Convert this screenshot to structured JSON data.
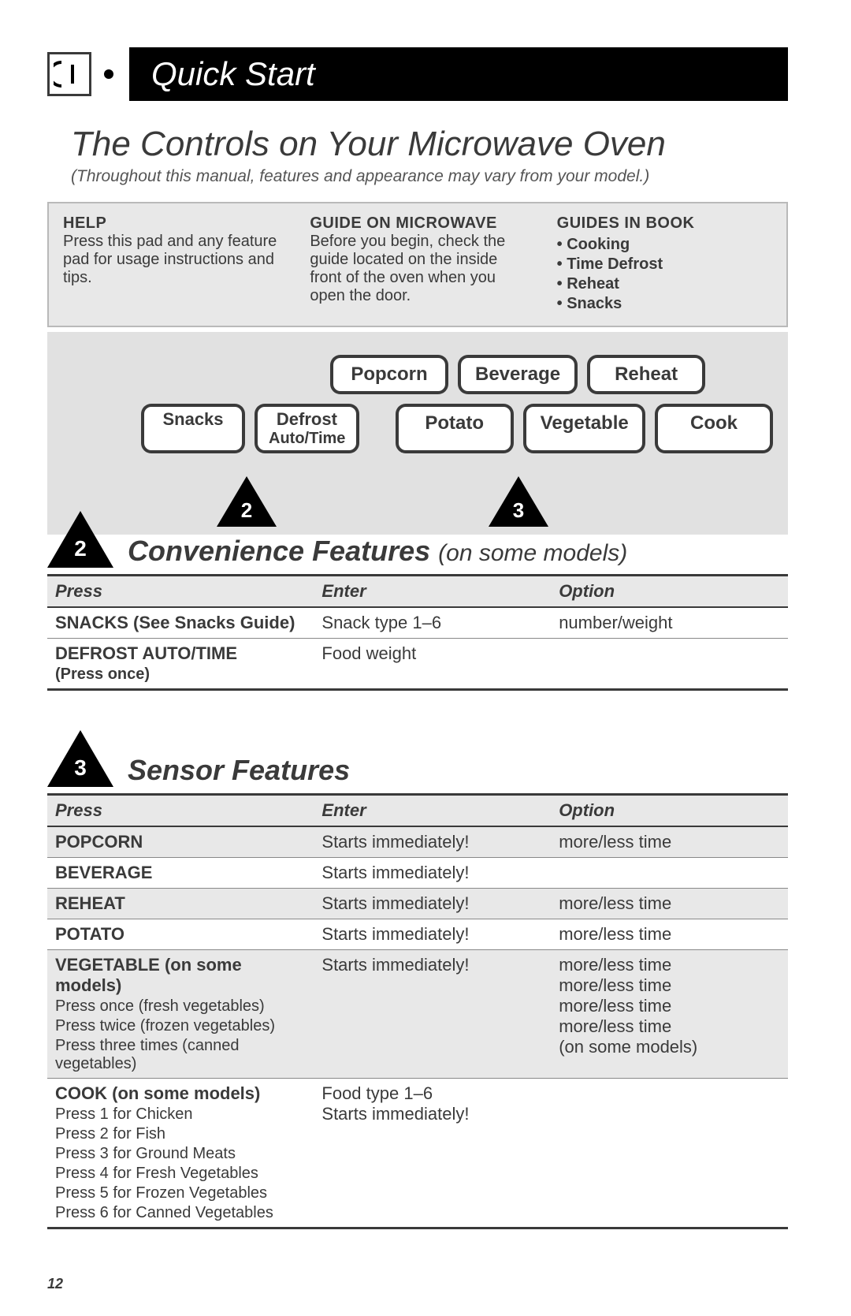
{
  "header": {
    "title": "Quick Start"
  },
  "main": {
    "title": "The Controls on Your Microwave Oven",
    "subtitle": "(Throughout this manual, features and appearance may vary from your model.)"
  },
  "guide": {
    "help": {
      "h": "HELP",
      "body": "Press this pad and any feature pad for usage instructions and tips."
    },
    "mw": {
      "h": "GUIDE ON MICROWAVE",
      "body": "Before you begin, check the guide located on the inside front of the oven when you open the door."
    },
    "book": {
      "h": "GUIDES IN BOOK",
      "items": [
        "Cooking",
        "Time Defrost",
        "Reheat",
        "Snacks"
      ]
    }
  },
  "buttons": {
    "row1": [
      "Popcorn",
      "Beverage",
      "Reheat"
    ],
    "row2_left": {
      "a": "Snacks",
      "b_top": "Defrost",
      "b_sub": "Auto/Time"
    },
    "row2_right": [
      "Potato",
      "Vegetable",
      "Cook"
    ],
    "markers": {
      "left": "2",
      "right": "3",
      "below": "2"
    }
  },
  "section2": {
    "title": "Convenience Features",
    "note": "(on some models)",
    "marker": "2",
    "columns": [
      "Press",
      "Enter",
      "Option"
    ],
    "rows": [
      {
        "press": "SNACKS (See Snacks Guide)",
        "enter": "Snack type 1–6",
        "option": "number/weight"
      },
      {
        "press": "DEFROST AUTO/TIME",
        "press_sub": "(Press once)",
        "enter": "Food weight",
        "option": ""
      }
    ]
  },
  "section3": {
    "title": "Sensor Features",
    "marker": "3",
    "columns": [
      "Press",
      "Enter",
      "Option"
    ],
    "rows": [
      {
        "press": "POPCORN",
        "enter": "Starts immediately!",
        "option": "more/less time",
        "alt": true
      },
      {
        "press": "BEVERAGE",
        "enter": "Starts immediately!",
        "option": ""
      },
      {
        "press": "REHEAT",
        "enter": "Starts immediately!",
        "option": "more/less time",
        "alt": true
      },
      {
        "press": "POTATO",
        "enter": "Starts immediately!",
        "option": "more/less time"
      },
      {
        "press": "VEGETABLE (on some models)",
        "press_extra": [
          "Press once (fresh vegetables)",
          "Press twice (frozen vegetables)",
          "Press three times (canned vegetables)"
        ],
        "enter": "Starts immediately!",
        "option_lines": [
          "more/less time",
          "more/less time",
          "more/less time",
          "more/less time",
          "(on some models)"
        ],
        "alt": true
      },
      {
        "press": "COOK (on some models)",
        "press_extra": [
          "Press 1 for Chicken",
          "Press 2 for Fish",
          "Press 3 for Ground Meats",
          "Press 4 for Fresh Vegetables",
          "Press 5 for Frozen Vegetables",
          "Press 6 for Canned Vegetables"
        ],
        "enter_lines": [
          "Food type 1–6",
          "Starts immediately!"
        ],
        "option": ""
      }
    ]
  },
  "page_number": "12"
}
